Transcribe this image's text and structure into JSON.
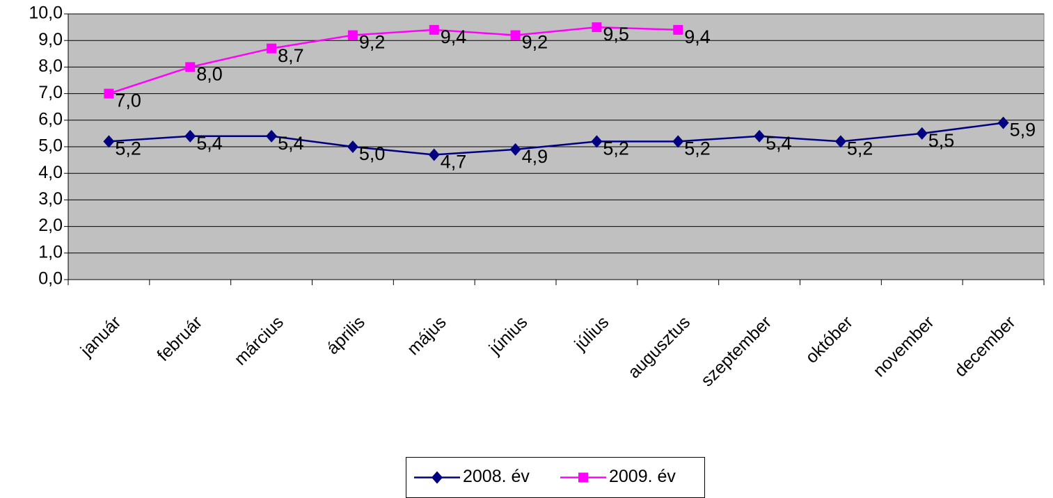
{
  "chart_data": {
    "type": "line",
    "categories": [
      "január",
      "február",
      "március",
      "április",
      "május",
      "június",
      "július",
      "augusztus",
      "szeptember",
      "október",
      "november",
      "december"
    ],
    "series": [
      {
        "name": "2008. év",
        "color": "#000080",
        "marker": "diamond",
        "values": [
          5.2,
          5.4,
          5.4,
          5.0,
          4.7,
          4.9,
          5.2,
          5.2,
          5.4,
          5.2,
          5.5,
          5.9
        ],
        "value_labels": [
          "5,2",
          "5,4",
          "5,4",
          "5,0",
          "4,7",
          "4,9",
          "5,2",
          "5,2",
          "5,4",
          "5,2",
          "5,5",
          "5,9"
        ]
      },
      {
        "name": "2009. év",
        "color": "#ff00ff",
        "marker": "square",
        "values": [
          7.0,
          8.0,
          8.7,
          9.2,
          9.4,
          9.2,
          9.5,
          9.4,
          null,
          null,
          null,
          null
        ],
        "value_labels": [
          "7,0",
          "8,0",
          "8,7",
          "9,2",
          "9,4",
          "9,2",
          "9,5",
          "9,4",
          null,
          null,
          null,
          null
        ]
      }
    ],
    "ylim": [
      0,
      10
    ],
    "yticks": [
      {
        "value": 0,
        "label": "0,0"
      },
      {
        "value": 1,
        "label": "1,0"
      },
      {
        "value": 2,
        "label": "2,0"
      },
      {
        "value": 3,
        "label": "3,0"
      },
      {
        "value": 4,
        "label": "4,0"
      },
      {
        "value": 5,
        "label": "5,0"
      },
      {
        "value": 6,
        "label": "6,0"
      },
      {
        "value": 7,
        "label": "7,0"
      },
      {
        "value": 8,
        "label": "8,0"
      },
      {
        "value": 9,
        "label": "9,0"
      },
      {
        "value": 10,
        "label": "10,0"
      }
    ],
    "grid": true,
    "plot_background": "#c0c0c0",
    "legend": "bottom"
  }
}
